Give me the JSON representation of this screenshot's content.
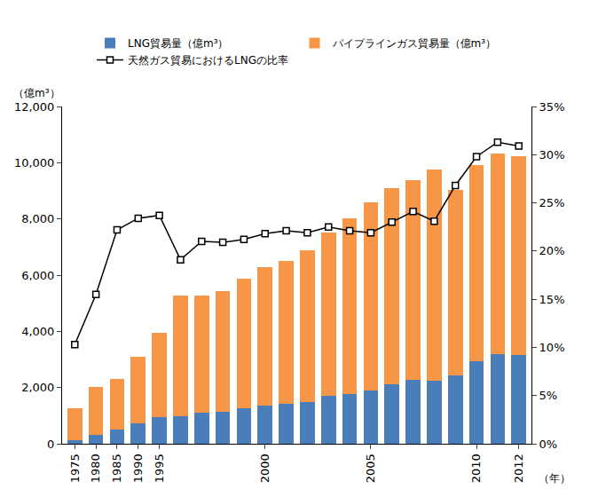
{
  "chart_data": {
    "type": "bar",
    "stacked": true,
    "x_label": "（年）",
    "y_label": "（億m³）",
    "categories": [
      "1975",
      "1980",
      "1985",
      "1990",
      "1995",
      null,
      null,
      null,
      null,
      "2000",
      null,
      null,
      null,
      null,
      "2005",
      null,
      null,
      null,
      null,
      "2010",
      null,
      "2012"
    ],
    "series": [
      {
        "name": "LNG貿易量（億m³）",
        "type": "bar",
        "color": "#4a7ebb",
        "values": [
          130,
          310,
          520,
          720,
          940,
          990,
          1090,
          1130,
          1250,
          1370,
          1420,
          1500,
          1690,
          1780,
          1890,
          2110,
          2280,
          2250,
          2430,
          2950,
          3200,
          3170
        ]
      },
      {
        "name": "パイプラインガス貿易量（億m³）",
        "type": "bar",
        "color": "#f79646",
        "values": [
          1140,
          1700,
          1770,
          2360,
          3000,
          4280,
          4180,
          4300,
          4620,
          4930,
          5080,
          5370,
          5840,
          6240,
          6710,
          7000,
          7110,
          7500,
          6610,
          6960,
          7130,
          7070
        ]
      },
      {
        "name": "天然ガス貿易におけるLNGの比率",
        "type": "line",
        "axis": "y2",
        "color": "#000000",
        "marker": "square",
        "values": [
          10.3,
          15.5,
          22.2,
          23.4,
          23.7,
          19.1,
          21.0,
          20.9,
          21.2,
          21.8,
          22.1,
          21.9,
          22.5,
          22.1,
          21.9,
          23.0,
          24.1,
          23.1,
          26.8,
          29.8,
          31.3,
          30.9
        ]
      }
    ],
    "ylim": [
      0,
      12000
    ],
    "yticks": [
      0,
      {
        "value": 2000,
        "label": "2,000"
      },
      {
        "value": 4000,
        "label": "4,000"
      },
      {
        "value": 6000,
        "label": "6,000"
      },
      {
        "value": 8000,
        "label": "8,000"
      },
      {
        "value": 10000,
        "label": "10,000"
      },
      {
        "value": 12000,
        "label": "12,000"
      }
    ],
    "y2lim": [
      0,
      35
    ],
    "y2ticks": [
      {
        "value": 0,
        "label": "0%"
      },
      {
        "value": 5,
        "label": "5%"
      },
      {
        "value": 10,
        "label": "10%"
      },
      {
        "value": 15,
        "label": "15%"
      },
      {
        "value": 20,
        "label": "20%"
      },
      {
        "value": 25,
        "label": "25%"
      },
      {
        "value": 30,
        "label": "30%"
      },
      {
        "value": 35,
        "label": "35%"
      }
    ],
    "grid": false,
    "legend": "top"
  }
}
